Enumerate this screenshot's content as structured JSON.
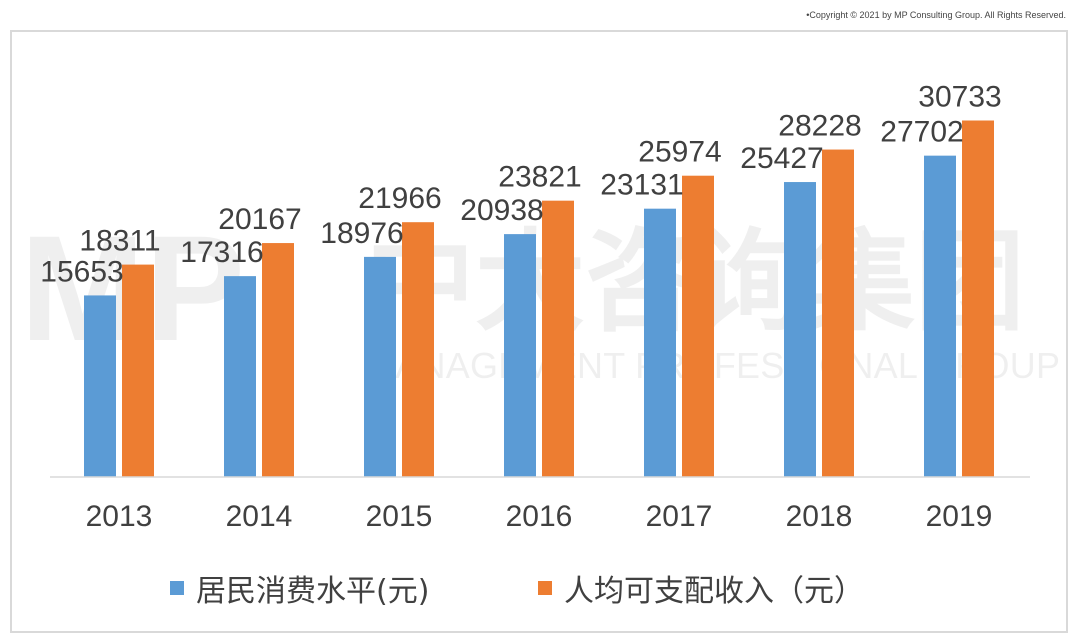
{
  "copyright": "•Copyright © 2021 by MP Consulting Group. All Rights Reserved.",
  "watermark": {
    "logo": "MP",
    "cn": "中大咨询集团",
    "en": "MANAGEMENT PROFESSIONAL GROUP"
  },
  "chart_data": {
    "type": "bar",
    "categories": [
      "2013",
      "2014",
      "2015",
      "2016",
      "2017",
      "2018",
      "2019"
    ],
    "series": [
      {
        "name": "居民消费水平(元)",
        "color": "#5b9bd5",
        "values": [
          15653,
          17316,
          18976,
          20938,
          23131,
          25427,
          27702
        ]
      },
      {
        "name": "人均可支配收入（元）",
        "color": "#ed7d31",
        "values": [
          18311,
          20167,
          21966,
          23821,
          25974,
          28228,
          30733
        ]
      }
    ],
    "title": "",
    "xlabel": "",
    "ylabel": "",
    "ylim": [
      0,
      35000
    ],
    "grid": false,
    "legend": "bottom",
    "data_labels": true
  }
}
